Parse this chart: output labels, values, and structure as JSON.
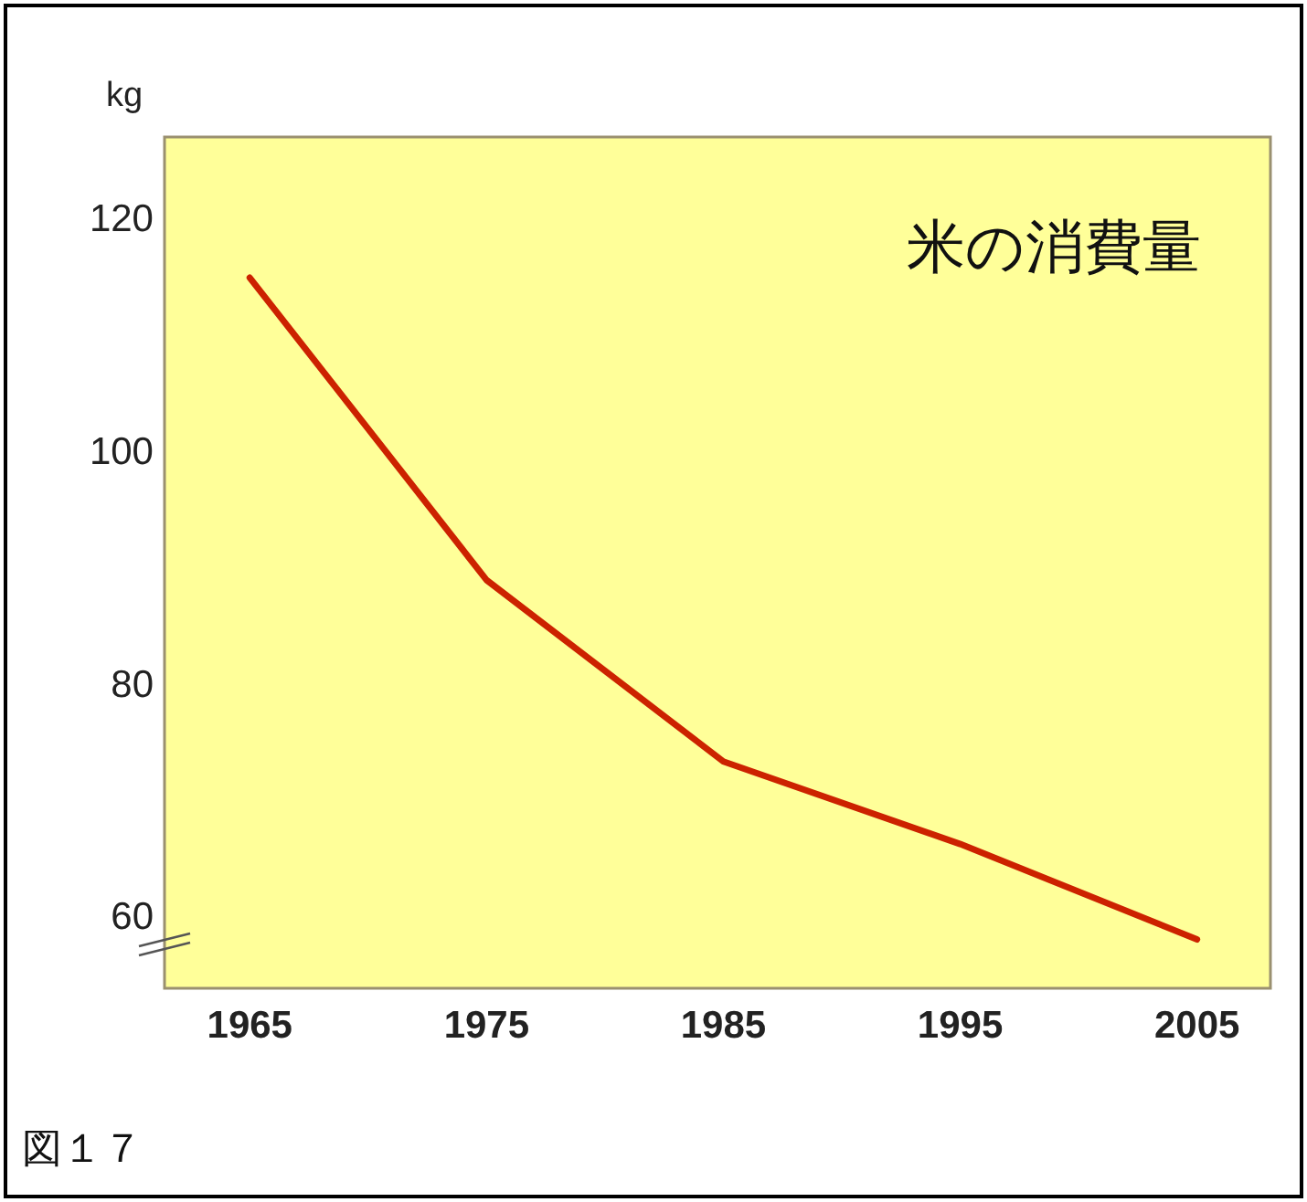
{
  "chart_data": {
    "type": "line",
    "title": "米の消費量",
    "ylabel": "kg",
    "annotations": [
      "図１７"
    ],
    "x": [
      1965,
      1975,
      1985,
      1995,
      2005
    ],
    "series": [
      {
        "color": "#cc2200",
        "values": [
          115,
          89,
          73.4,
          66.3,
          58.1
        ]
      }
    ],
    "xlim": [
      1961.4,
      2008.1
    ],
    "ylim": [
      53.9,
      127.1
    ],
    "xticks": [
      1965,
      1975,
      1985,
      1995,
      2005
    ],
    "yticks": [
      60,
      80,
      100,
      120
    ]
  }
}
